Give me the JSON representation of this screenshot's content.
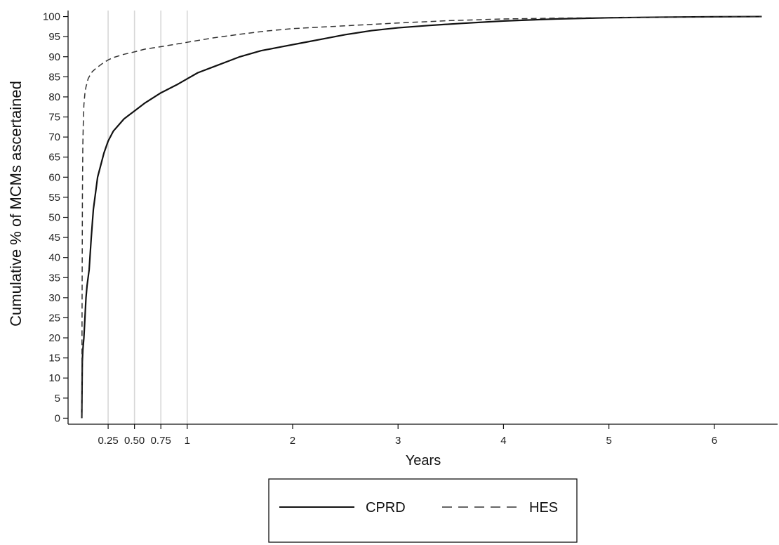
{
  "chart_data": {
    "type": "line",
    "xlabel": "Years",
    "ylabel": "Cumulative % of MCMs ascertained",
    "xlim": [
      -0.13,
      6.6
    ],
    "ylim": [
      -1.5,
      101.5
    ],
    "xticks": [
      {
        "value": 0.25,
        "label": "0.25"
      },
      {
        "value": 0.5,
        "label": "0.50"
      },
      {
        "value": 0.75,
        "label": "0.75"
      },
      {
        "value": 1,
        "label": "1"
      },
      {
        "value": 2,
        "label": "2"
      },
      {
        "value": 3,
        "label": "3"
      },
      {
        "value": 4,
        "label": "4"
      },
      {
        "value": 5,
        "label": "5"
      },
      {
        "value": 6,
        "label": "6"
      }
    ],
    "yticks": [
      0,
      5,
      10,
      15,
      20,
      25,
      30,
      35,
      40,
      45,
      50,
      55,
      60,
      65,
      70,
      75,
      80,
      85,
      90,
      95,
      100
    ],
    "vlines": [
      0.25,
      0.5,
      0.75,
      1
    ],
    "legend": {
      "position": "bottom",
      "entries": [
        "CPRD",
        "HES"
      ]
    },
    "series": [
      {
        "name": "CPRD",
        "style": "solid",
        "color": "#111111",
        "x": [
          0,
          0.003,
          0.005,
          0.01,
          0.02,
          0.03,
          0.04,
          0.05,
          0.07,
          0.09,
          0.11,
          0.13,
          0.15,
          0.18,
          0.21,
          0.25,
          0.3,
          0.35,
          0.4,
          0.45,
          0.5,
          0.6,
          0.75,
          0.9,
          1.0,
          1.1,
          1.25,
          1.4,
          1.5,
          1.7,
          1.9,
          2.1,
          2.3,
          2.5,
          2.75,
          3.0,
          3.3,
          3.6,
          4.0,
          4.5,
          5.0,
          5.5,
          6.0,
          6.45
        ],
        "y": [
          0,
          9,
          14,
          17,
          20,
          25,
          30,
          33,
          37,
          45,
          52,
          56,
          60,
          63,
          66,
          69,
          71.5,
          73,
          74.5,
          75.5,
          76.5,
          78.5,
          81,
          83,
          84.5,
          86,
          87.5,
          89,
          90,
          91.5,
          92.5,
          93.5,
          94.5,
          95.5,
          96.5,
          97.2,
          97.8,
          98.3,
          98.9,
          99.4,
          99.7,
          99.85,
          99.95,
          100
        ]
      },
      {
        "name": "HES",
        "style": "dashed",
        "color": "#333333",
        "x": [
          0,
          0.003,
          0.006,
          0.01,
          0.015,
          0.02,
          0.03,
          0.04,
          0.05,
          0.06,
          0.08,
          0.1,
          0.13,
          0.17,
          0.2,
          0.25,
          0.3,
          0.4,
          0.5,
          0.6,
          0.75,
          1.0,
          1.25,
          1.5,
          1.75,
          2.0,
          2.5,
          3.0,
          3.5,
          4.0,
          4.5,
          5.0,
          5.5,
          6.0,
          6.45
        ],
        "y": [
          0,
          30,
          55,
          68,
          74,
          78,
          81,
          82.5,
          83.5,
          84.5,
          85.5,
          86.3,
          87,
          87.8,
          88.4,
          89.2,
          89.8,
          90.6,
          91.2,
          91.9,
          92.5,
          93.6,
          94.7,
          95.6,
          96.4,
          97,
          97.7,
          98.4,
          99,
          99.4,
          99.6,
          99.75,
          99.85,
          99.95,
          100
        ]
      }
    ]
  }
}
